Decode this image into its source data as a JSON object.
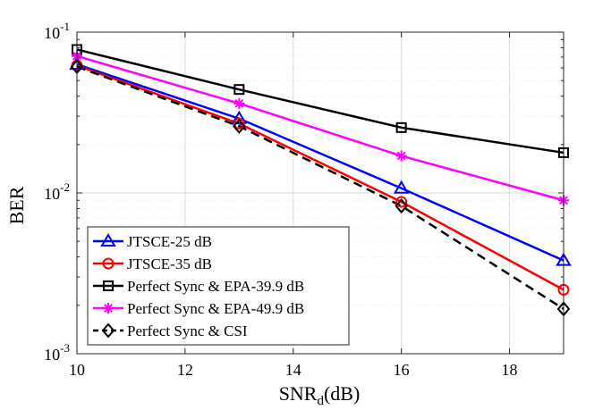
{
  "chart_data": {
    "type": "line",
    "title": "",
    "xlabel": "SNR",
    "xlabel_sub": "d",
    "xlabel_units": "(dB)",
    "ylabel": "BER",
    "xlim": [
      10,
      19
    ],
    "ylim": [
      0.001,
      0.1
    ],
    "yscale": "log",
    "grid": true,
    "x_ticks": [
      10,
      12,
      14,
      16,
      18
    ],
    "x_tick_labels": [
      "10",
      "12",
      "14",
      "16",
      "18"
    ],
    "y_ticks": [
      0.001,
      0.01,
      0.1
    ],
    "y_tick_labels": [
      {
        "base": "10",
        "exp": "-3"
      },
      {
        "base": "10",
        "exp": "-2"
      },
      {
        "base": "10",
        "exp": "-1"
      }
    ],
    "legend_position": "bottom-left",
    "series": [
      {
        "name": "JTSCE-25 dB",
        "color": "#0000ff",
        "marker": "triangle",
        "dash": "solid",
        "x": [
          10,
          13,
          16,
          19
        ],
        "values": [
          0.063,
          0.029,
          0.0107,
          0.0038
        ]
      },
      {
        "name": "JTSCE-35 dB",
        "color": "#ff0000",
        "marker": "circle",
        "dash": "solid",
        "x": [
          10,
          13,
          16,
          19
        ],
        "values": [
          0.062,
          0.027,
          0.0088,
          0.0025
        ]
      },
      {
        "name": "Perfect Sync & EPA-39.9 dB",
        "color": "#000000",
        "marker": "square",
        "dash": "solid",
        "x": [
          10,
          13,
          16,
          19
        ],
        "values": [
          0.078,
          0.044,
          0.0255,
          0.0178
        ]
      },
      {
        "name": "Perfect Sync & EPA-49.9 dB",
        "color": "#ff00ff",
        "marker": "asterisk",
        "dash": "solid",
        "x": [
          10,
          13,
          16,
          19
        ],
        "values": [
          0.071,
          0.036,
          0.017,
          0.009
        ]
      },
      {
        "name": "Perfect Sync & CSI",
        "color": "#000000",
        "marker": "diamond",
        "dash": "dashed",
        "x": [
          10,
          13,
          16,
          19
        ],
        "values": [
          0.061,
          0.026,
          0.0083,
          0.0019
        ]
      }
    ]
  }
}
